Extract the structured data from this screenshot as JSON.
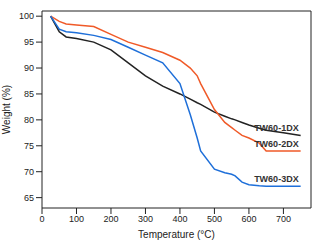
{
  "chart_data": {
    "type": "line",
    "x_label": "Temperature (°C)",
    "y_label": "Weight (%)",
    "x": [
      25,
      50,
      70,
      100,
      150,
      200,
      250,
      300,
      350,
      400,
      430,
      450,
      460,
      500,
      530,
      550,
      560,
      580,
      600,
      630,
      650,
      700,
      750
    ],
    "series": [
      {
        "name": "TW60-1DX",
        "color": "#222222",
        "values": [
          100,
          97,
          96,
          95.7,
          95,
          93.5,
          91,
          88.5,
          86.5,
          85,
          84,
          83.3,
          83,
          81.5,
          80.7,
          80.2,
          80,
          79.5,
          79,
          78.4,
          78,
          77.5,
          77
        ]
      },
      {
        "name": "TW60-2DX",
        "color": "#f05a28",
        "values": [
          100,
          99,
          98.5,
          98.3,
          98,
          96.5,
          95,
          94,
          93,
          91.5,
          90,
          88.5,
          87,
          82,
          79.5,
          78.5,
          78,
          77,
          76.5,
          75.5,
          74,
          74,
          74
        ]
      },
      {
        "name": "TW60-3DX",
        "color": "#1e6fd9",
        "values": [
          100,
          97.5,
          97,
          96.8,
          96.3,
          95.5,
          94,
          92.5,
          91,
          87,
          81,
          76.5,
          74,
          70.5,
          69.8,
          69.5,
          69.2,
          68,
          67.5,
          67.3,
          67.2,
          67.2,
          67.2
        ]
      }
    ],
    "xlim": [
      0,
      780
    ],
    "ylim": [
      63,
      101
    ],
    "xticks": [
      0,
      100,
      200,
      300,
      400,
      500,
      600,
      700
    ],
    "yticks": [
      65,
      70,
      75,
      80,
      85,
      90,
      95,
      100
    ],
    "grid": false
  }
}
